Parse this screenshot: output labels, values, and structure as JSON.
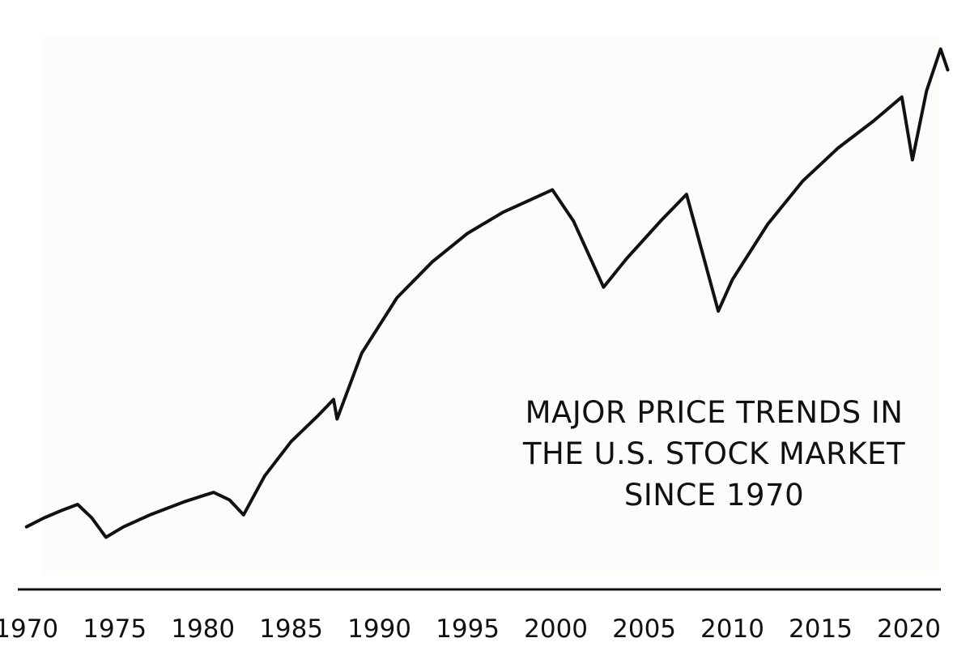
{
  "chart_data": {
    "type": "line",
    "title_lines": [
      "MAJOR PRICE TRENDS IN",
      "THE U.S. STOCK MARKET",
      "SINCE 1970"
    ],
    "xlabel": "",
    "ylabel": "",
    "xlim": [
      1968.5,
      2022.5
    ],
    "x_ticks": [
      1970,
      1975,
      1980,
      1985,
      1990,
      1995,
      2000,
      2005,
      2010,
      2015,
      2020
    ],
    "y_axis_shown": false,
    "grid": false,
    "legend": "none",
    "line_color": "#111111",
    "series": [
      {
        "x": [
          1970,
          1971,
          1972,
          1972.9,
          1973.7,
          1974.5,
          1975.5,
          1977,
          1979,
          1980.6,
          1981.5,
          1982.3,
          1983.5,
          1985,
          1986.5,
          1987.4,
          1987.6,
          1989,
          1991,
          1993,
          1995,
          1997,
          1999.8,
          2001,
          2002.7,
          2004,
          2006,
          2007.4,
          2009.2,
          2010,
          2012,
          2014,
          2016,
          2018,
          2019.6,
          2020.2,
          2021,
          2021.8,
          2022.2
        ],
        "y": [
          18,
          24,
          29,
          33,
          24,
          11,
          18,
          26,
          35,
          41,
          36,
          26,
          52,
          75,
          92,
          103,
          90,
          134,
          171,
          195,
          214,
          228,
          243,
          222,
          178,
          197,
          223,
          240,
          162,
          183,
          220,
          249,
          271,
          289,
          305,
          263,
          309,
          337,
          323
        ]
      }
    ]
  }
}
